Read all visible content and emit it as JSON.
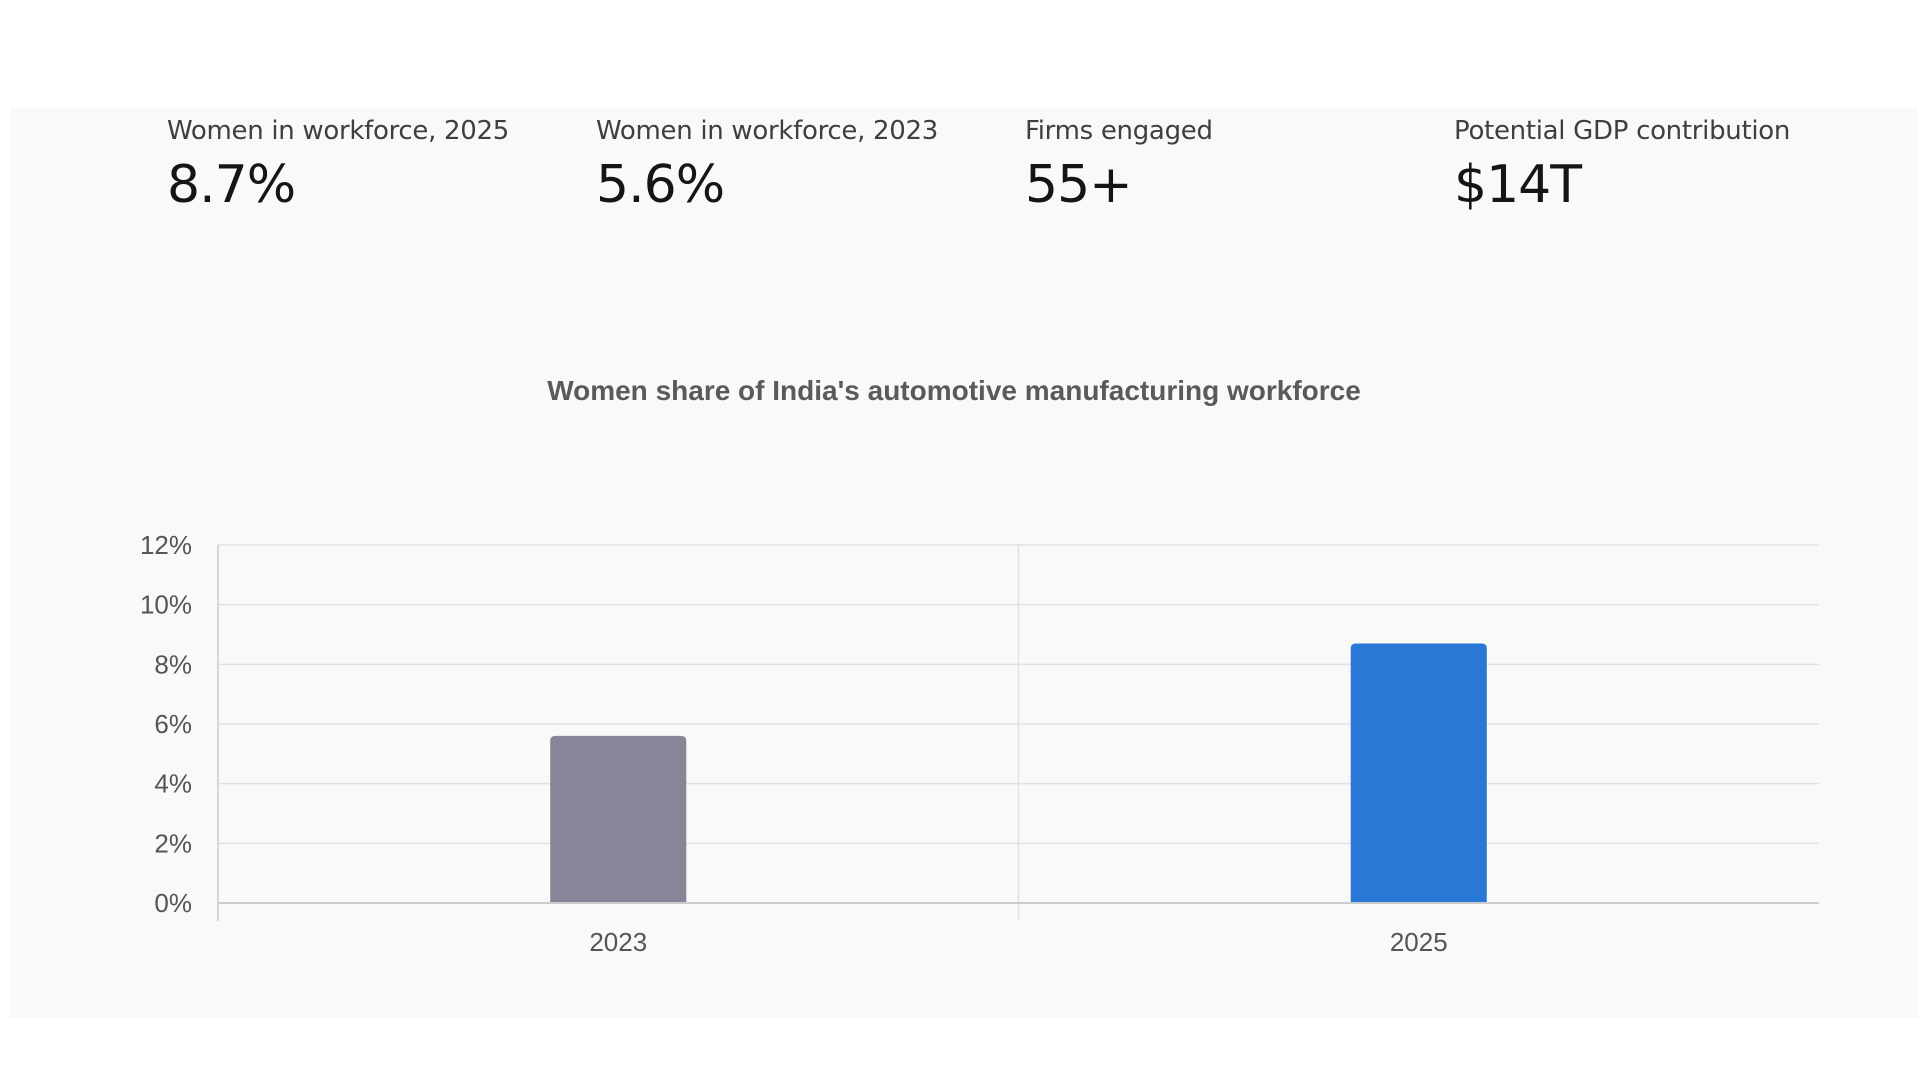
{
  "stats": [
    {
      "label": "Women in workforce, 2025",
      "value": "8.7%"
    },
    {
      "label": "Women in workforce, 2023",
      "value": "5.6%"
    },
    {
      "label": "Firms engaged",
      "value": "55+"
    },
    {
      "label": "Potential GDP contribution",
      "value": "$14T"
    }
  ],
  "chart_data": {
    "type": "bar",
    "title": "Women share of India's automotive manufacturing workforce",
    "categories": [
      "2023",
      "2025"
    ],
    "values": [
      5.6,
      8.7
    ],
    "bar_colors": [
      "#878597",
      "#2a78d6"
    ],
    "ylim": [
      0,
      12
    ],
    "yticks": [
      0,
      2,
      4,
      6,
      8,
      10,
      12
    ],
    "ytick_labels": [
      "0%",
      "2%",
      "4%",
      "6%",
      "8%",
      "10%",
      "12%"
    ],
    "xlabel": "",
    "ylabel": "",
    "grid": true,
    "legend": "none"
  },
  "colors": {
    "panel_bg": "#f9f9f8",
    "grid": "#e2e2e2",
    "axis": "#cccccc"
  }
}
